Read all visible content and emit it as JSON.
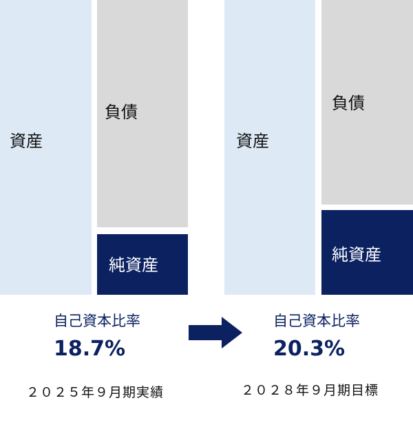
{
  "left": {
    "assets": "資産",
    "liabilities": "負債",
    "net_assets": "純資産",
    "ratio_label": "自己資本比率",
    "ratio": "18.7%",
    "period": "２０２５年９月期実績"
  },
  "right": {
    "assets": "資産",
    "liabilities": "負債",
    "net_assets": "純資産",
    "ratio_label": "自己資本比率",
    "ratio": "20.3%",
    "period": "２０２８年９月期目標"
  }
}
